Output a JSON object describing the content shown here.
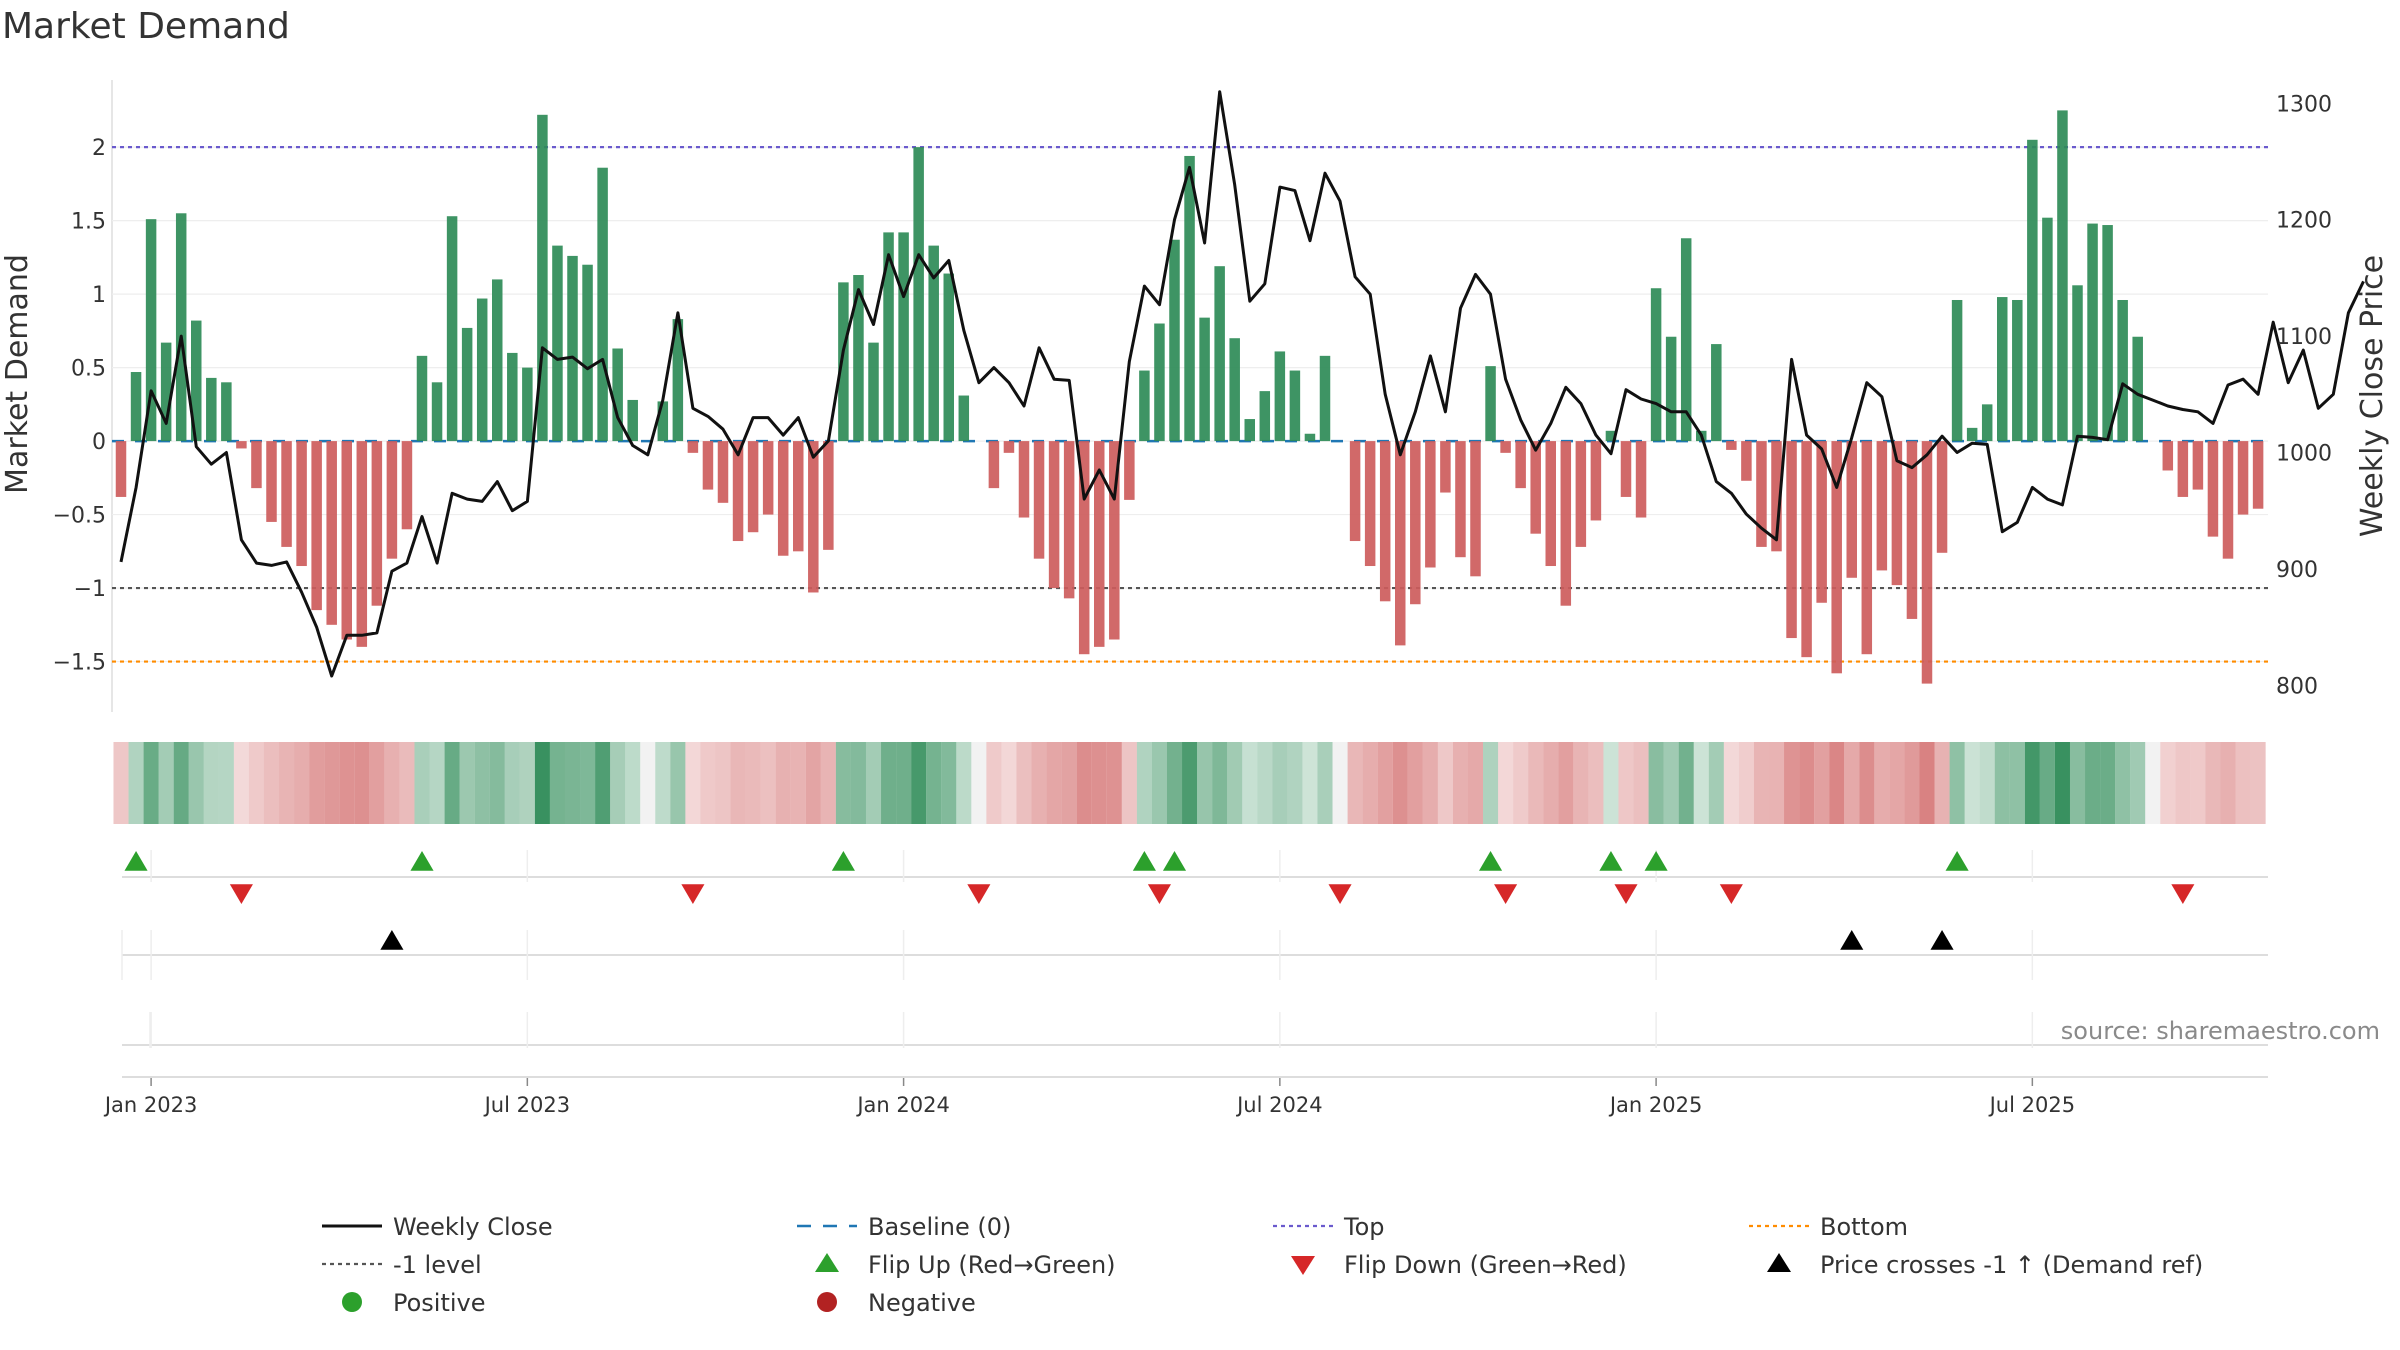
{
  "chart_data": {
    "type": "bar",
    "title": "Market Demand",
    "ylabel": "Market Demand",
    "y2label": "Weekly Close Price",
    "source": "source: sharemaestro.com",
    "ylim": [
      -1.85,
      2.45
    ],
    "y2lim": [
      776.2,
      1319.2
    ],
    "yticks": [
      -1.5,
      -1,
      -0.5,
      0,
      0.5,
      1,
      1.5,
      2
    ],
    "ytick_labels": [
      "−1.5",
      "−1",
      "−0.5",
      "0",
      "0.5",
      "1",
      "1.5",
      "2"
    ],
    "y2ticks": [
      800,
      900,
      1000,
      1100,
      1200,
      1300
    ],
    "y2tick_labels": [
      "800",
      "900",
      "1000",
      "1100",
      "1200",
      "1300"
    ],
    "reference_lines": {
      "top": 2,
      "level_minus_1": -1,
      "bottom": -1.5,
      "baseline": 0
    },
    "date_labels": [
      "Jan 2023",
      "Jul 2023",
      "Jan 2024",
      "Jul 2024",
      "Jan 2025",
      "Jul 2025"
    ],
    "date_label_weeks": [
      2,
      27,
      52,
      77,
      102,
      127
    ],
    "demand": [
      -0.38,
      0.47,
      1.51,
      0.67,
      1.55,
      0.82,
      0.43,
      0.4,
      -0.05,
      -0.32,
      -0.55,
      -0.72,
      -0.85,
      -1.15,
      -1.25,
      -1.35,
      -1.4,
      -1.12,
      -0.8,
      -0.6,
      0.58,
      0.4,
      1.53,
      0.77,
      0.97,
      1.1,
      0.6,
      0.5,
      2.22,
      1.33,
      1.26,
      1.2,
      1.86,
      0.63,
      0.28,
      0,
      0.27,
      0.83,
      -0.08,
      -0.33,
      -0.42,
      -0.68,
      -0.62,
      -0.5,
      -0.78,
      -0.75,
      -1.03,
      -0.74,
      1.08,
      1.13,
      0.67,
      1.42,
      1.42,
      2.0,
      1.33,
      1.14,
      0.31,
      0,
      -0.32,
      -0.08,
      -0.52,
      -0.8,
      -1.0,
      -1.07,
      -1.45,
      -1.4,
      -1.35,
      -0.4,
      0.48,
      0.8,
      1.37,
      1.94,
      0.84,
      1.19,
      0.7,
      0.15,
      0.34,
      0.61,
      0.48,
      0.05,
      0.58,
      0,
      -0.68,
      -0.85,
      -1.09,
      -1.39,
      -1.11,
      -0.86,
      -0.35,
      -0.79,
      -0.92,
      0.51,
      -0.08,
      -0.32,
      -0.63,
      -0.85,
      -1.12,
      -0.72,
      -0.54,
      0.07,
      -0.38,
      -0.52,
      1.04,
      0.71,
      1.38,
      0.07,
      0.66,
      -0.06,
      -0.27,
      -0.72,
      -0.75,
      -1.34,
      -1.47,
      -1.1,
      -1.58,
      -0.93,
      -1.45,
      -0.88,
      -0.98,
      -1.21,
      -1.65,
      -0.76,
      0.96,
      0.09,
      0.25,
      0.98,
      0.96,
      2.05,
      1.52,
      2.25,
      1.06,
      1.48,
      1.47,
      0.96,
      0.71,
      0,
      -0.2,
      -0.38,
      -0.33,
      -0.65,
      -0.8,
      -0.5,
      -0.46
    ],
    "weekly_close": [
      906,
      970,
      1053,
      1025,
      1100,
      1005,
      990,
      1000,
      925,
      905,
      903,
      906,
      880,
      850,
      808,
      843,
      843,
      845,
      898,
      905,
      945,
      905,
      965,
      960,
      958,
      975,
      950,
      958,
      1090,
      1080,
      1082,
      1072,
      1080,
      1030,
      1006,
      998,
      1045,
      1120,
      1038,
      1031,
      1020,
      998,
      1030,
      1030,
      1015,
      1030,
      996,
      1010,
      1088,
      1140,
      1110,
      1170,
      1134,
      1170,
      1150,
      1165,
      1105,
      1060,
      1073,
      1060,
      1040,
      1090,
      1063,
      1062,
      960,
      985,
      960,
      1078,
      1143,
      1127,
      1200,
      1245,
      1180,
      1310,
      1230,
      1130,
      1145,
      1228,
      1225,
      1182,
      1240,
      1216,
      1151,
      1136,
      1050,
      998,
      1035,
      1083,
      1035,
      1124,
      1153,
      1136,
      1063,
      1028,
      1002,
      1025,
      1056,
      1042,
      1015,
      999,
      1054,
      1046,
      1042,
      1035,
      1035,
      1015,
      975,
      965,
      947,
      935,
      925,
      1080,
      1015,
      1003,
      970,
      1013,
      1060,
      1048,
      993,
      987,
      998,
      1014,
      1000,
      1008,
      1007,
      932,
      940,
      970,
      960,
      955,
      1014,
      1013,
      1011,
      1059,
      1050,
      1045,
      1040,
      1037,
      1035,
      1025,
      1058,
      1063,
      1050,
      1112,
      1060,
      1088,
      1038,
      1050,
      1120,
      1147
    ],
    "heatmap_strip": "per-week color intensity proportional to demand value (green positive, red negative)",
    "flip_up_weeks": [
      1,
      20,
      48,
      68,
      70,
      91,
      99,
      102,
      122
    ],
    "flip_down_weeks": [
      8,
      38,
      57,
      69,
      81,
      92,
      100,
      107,
      137
    ],
    "price_cross_weeks": [
      18,
      115,
      121
    ]
  },
  "legend": [
    {
      "label": "Weekly Close",
      "marker": "line"
    },
    {
      "label": "Baseline (0)",
      "marker": "dash"
    },
    {
      "label": "Top",
      "marker": "dotted"
    },
    {
      "label": "Bottom",
      "marker": "dotted-orange"
    },
    {
      "label": "-1 level",
      "marker": "dotted-gray"
    },
    {
      "label": "Flip Up (Red→Green)",
      "marker": "triangle-up-green"
    },
    {
      "label": "Flip Down (Green→Red)",
      "marker": "triangle-down-red"
    },
    {
      "label": "Price crosses -1 ↑ (Demand ref)",
      "marker": "triangle-up-black"
    },
    {
      "label": "Positive",
      "marker": "circle-green"
    },
    {
      "label": "Negative",
      "marker": "circle-red"
    }
  ],
  "colors": {
    "positive": "#2e8b57",
    "negative": "#cd5c5c",
    "price_line": "#111111",
    "top_line": "#6a5acd",
    "bottom_line": "#ff8c00",
    "level_line": "#555555",
    "baseline": "#1f77b4",
    "flip_up": "#2ca02c",
    "flip_down": "#d62728",
    "cross": "#000000",
    "legend_positive": "#2ca02c",
    "legend_negative": "#b22222"
  }
}
